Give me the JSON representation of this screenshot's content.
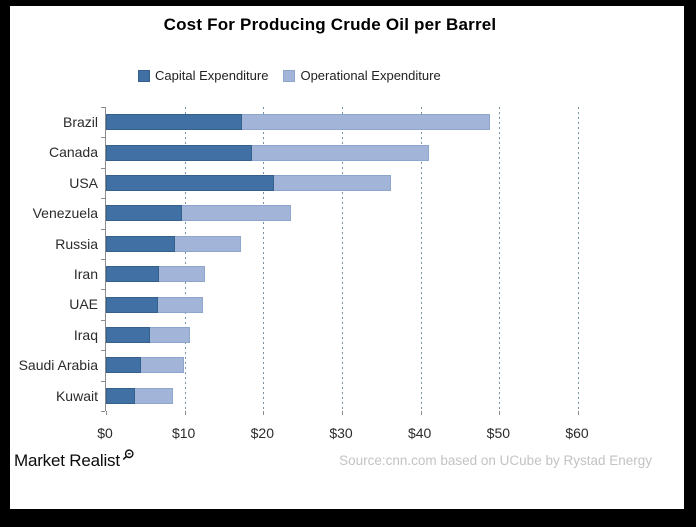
{
  "title": "Cost For Producing Crude Oil per Barrel",
  "legend": [
    {
      "label": "Capital Expenditure",
      "color": "#4170a4",
      "border": "#35608c"
    },
    {
      "label": "Operational Expenditure",
      "color": "#a2b5d8",
      "border": "#8fa6cc"
    }
  ],
  "footer": {
    "brand": "Market Realist",
    "source": "Source:cnn.com based on UCube by Rystad Energy"
  },
  "chart_data": {
    "type": "bar",
    "orientation": "horizontal",
    "stacked": true,
    "title": "Cost For Producing Crude Oil per Barrel",
    "categories": [
      "Brazil",
      "Canada",
      "USA",
      "Venezuela",
      "Russia",
      "Iran",
      "UAE",
      "Iraq",
      "Saudi Arabia",
      "Kuwait"
    ],
    "series": [
      {
        "name": "Capital Expenditure",
        "color": "#4170a4",
        "border": "#35608c",
        "values": [
          17.3,
          18.5,
          21.4,
          9.6,
          8.8,
          6.8,
          6.6,
          5.6,
          4.4,
          3.7
        ]
      },
      {
        "name": "Operational Expenditure",
        "color": "#a2b5d8",
        "border": "#8fa6cc",
        "values": [
          31.5,
          22.5,
          14.8,
          13.9,
          8.4,
          5.8,
          5.7,
          5.1,
          5.5,
          4.8
        ]
      }
    ],
    "totals": [
      48.8,
      41.0,
      36.2,
      23.5,
      17.2,
      12.6,
      12.3,
      10.7,
      9.9,
      8.5
    ],
    "xlabel": "",
    "ylabel": "",
    "x_tick_labels": [
      "$0",
      "$10",
      "$20",
      "$30",
      "$40",
      "$50",
      "$60"
    ],
    "xlim": [
      0,
      60
    ],
    "x_tick_step": 10,
    "grid": "vertical-dashed",
    "legend_position": "top",
    "grid_color": "#7591a6"
  }
}
